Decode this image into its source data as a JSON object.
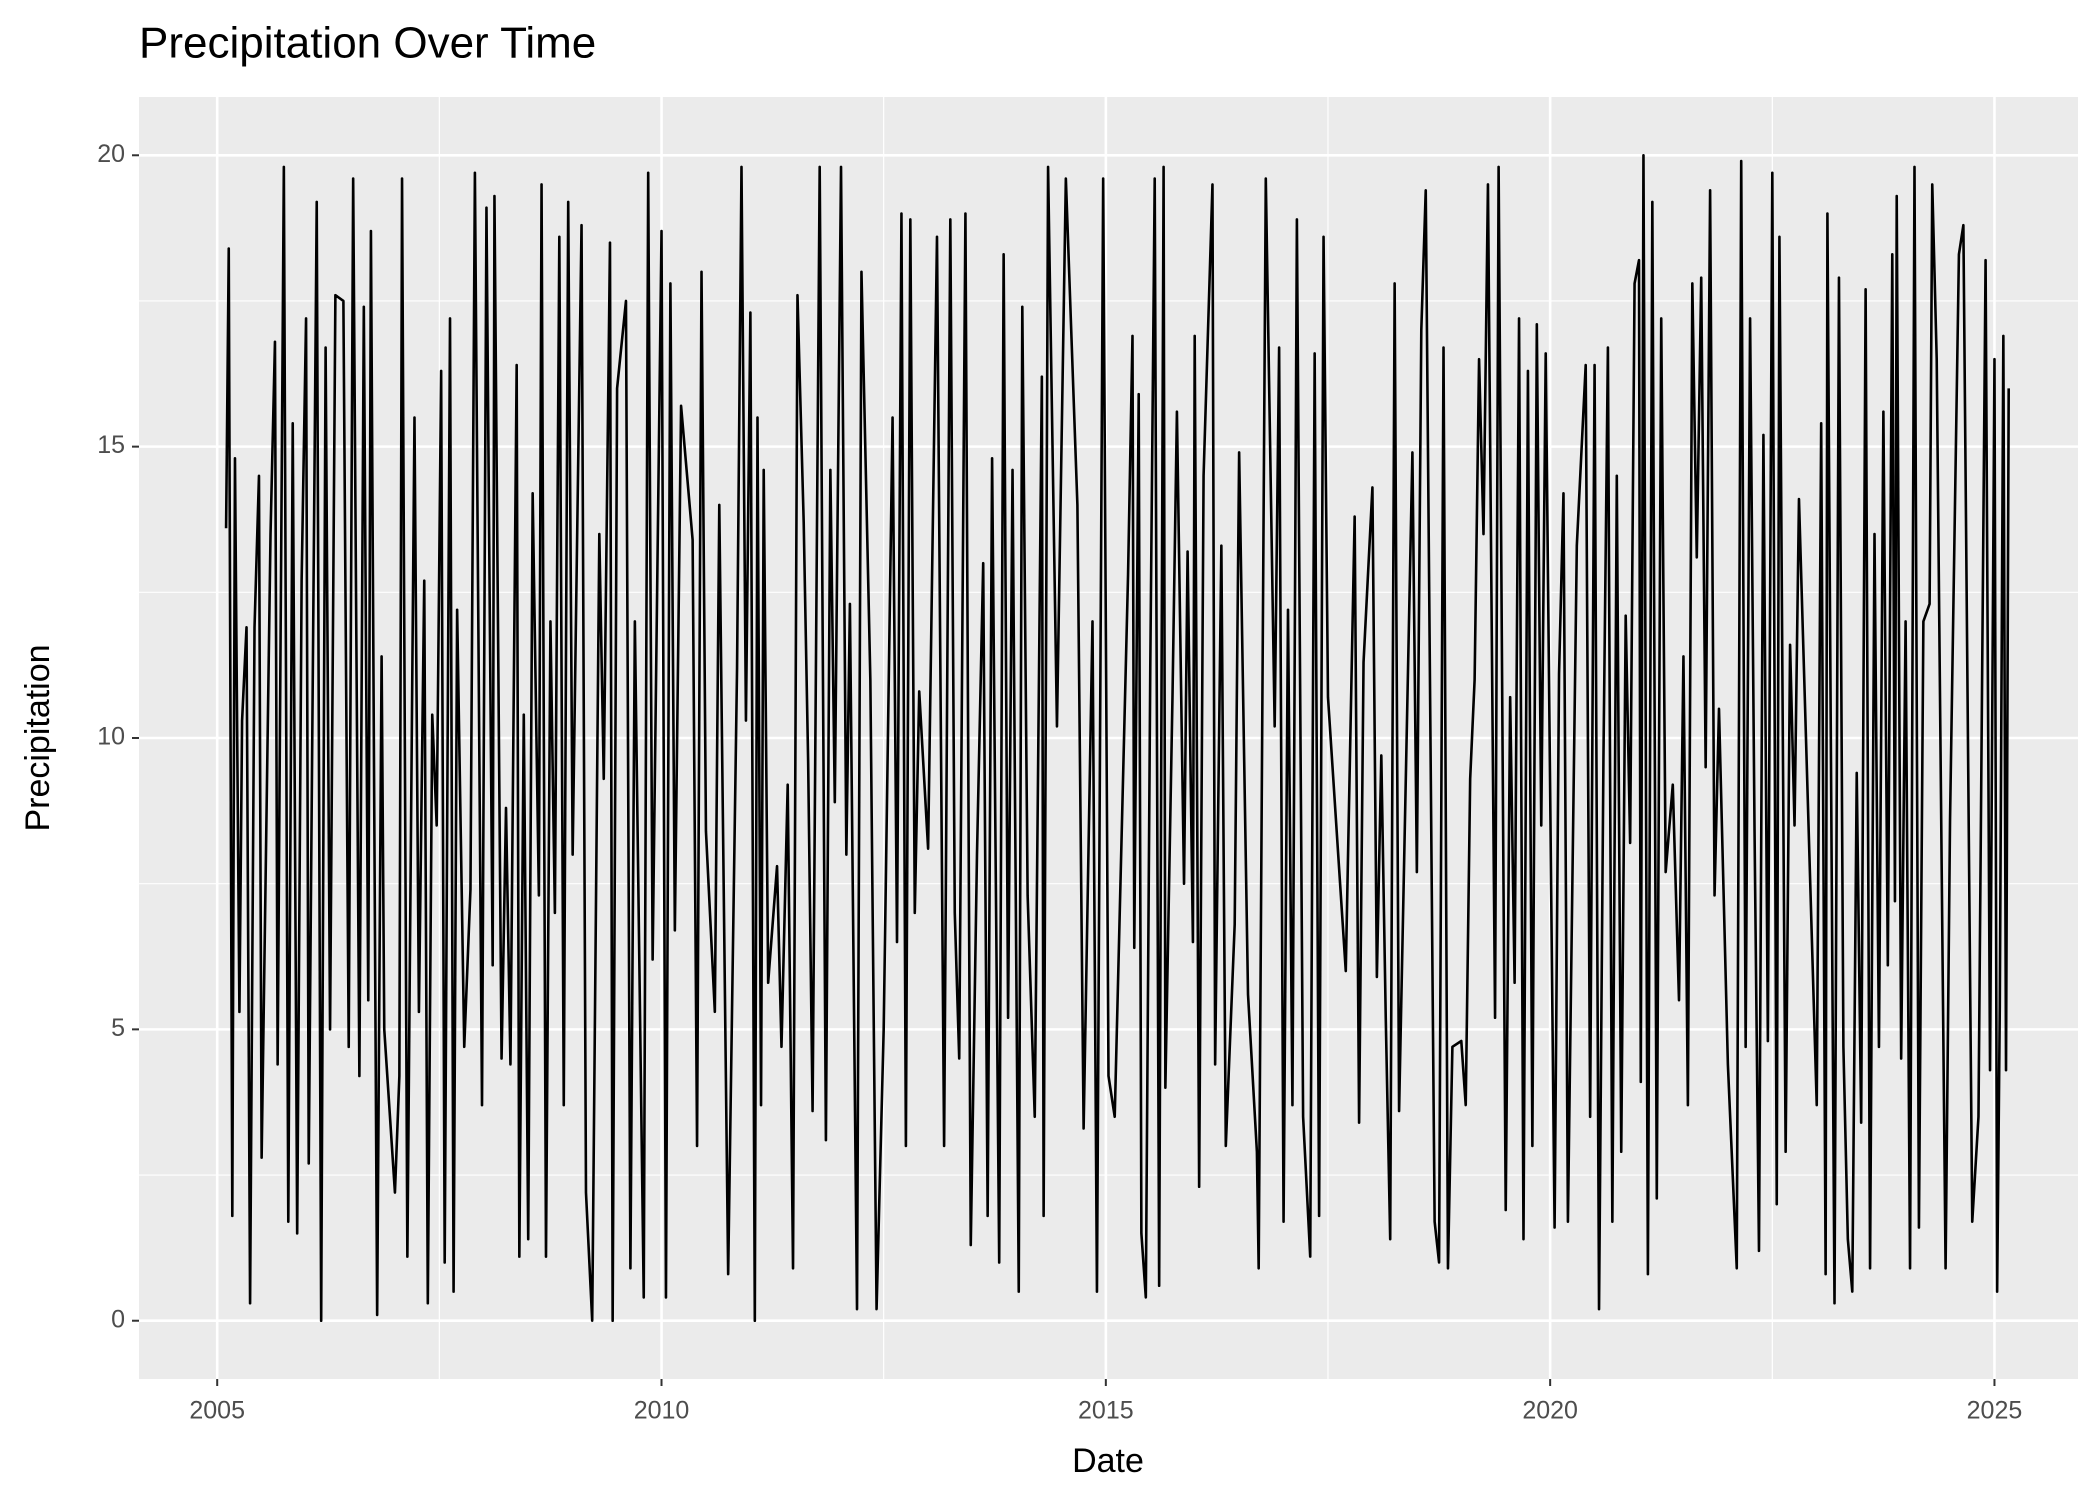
{
  "chart_data": {
    "type": "line",
    "title": "Precipitation Over Time",
    "x_label": "Date",
    "y_label": "Precipitation",
    "xlim": [
      2004.12,
      2025.94
    ],
    "ylim": [
      -1,
      21
    ],
    "xticks": [
      2005,
      2010,
      2015,
      2020,
      2025
    ],
    "yticks": [
      0,
      5,
      10,
      15,
      20
    ],
    "xminor": [
      2007.5,
      2012.5,
      2017.5,
      2022.5
    ],
    "yminor": [
      2.5,
      7.5,
      12.5,
      17.5
    ],
    "grid": true,
    "color": "#000000",
    "x": [
      2005.1,
      2005.13,
      2005.17,
      2005.2,
      2005.25,
      2005.28,
      2005.33,
      2005.37,
      2005.42,
      2005.47,
      2005.5,
      2005.6,
      2005.65,
      2005.68,
      2005.75,
      2005.8,
      2005.85,
      2005.9,
      2005.95,
      2006.0,
      2006.03,
      2006.12,
      2006.17,
      2006.22,
      2006.27,
      2006.33,
      2006.42,
      2006.48,
      2006.53,
      2006.6,
      2006.65,
      2006.7,
      2006.73,
      2006.8,
      2006.85,
      2006.88,
      2007.0,
      2007.05,
      2007.08,
      2007.14,
      2007.22,
      2007.27,
      2007.33,
      2007.37,
      2007.42,
      2007.47,
      2007.52,
      2007.56,
      2007.62,
      2007.66,
      2007.7,
      2007.78,
      2007.85,
      2007.9,
      2007.98,
      2008.03,
      2008.1,
      2008.12,
      2008.2,
      2008.25,
      2008.3,
      2008.37,
      2008.4,
      2008.45,
      2008.5,
      2008.55,
      2008.62,
      2008.65,
      2008.7,
      2008.75,
      2008.8,
      2008.85,
      2008.9,
      2008.95,
      2009.0,
      2009.1,
      2009.15,
      2009.22,
      2009.3,
      2009.35,
      2009.42,
      2009.45,
      2009.5,
      2009.6,
      2009.65,
      2009.7,
      2009.8,
      2009.85,
      2009.9,
      2010.0,
      2010.05,
      2010.1,
      2010.15,
      2010.22,
      2010.35,
      2010.4,
      2010.45,
      2010.5,
      2010.6,
      2010.65,
      2010.75,
      2010.85,
      2010.9,
      2010.95,
      2011.0,
      2011.05,
      2011.08,
      2011.12,
      2011.15,
      2011.2,
      2011.3,
      2011.35,
      2011.42,
      2011.48,
      2011.53,
      2011.6,
      2011.65,
      2011.7,
      2011.78,
      2011.85,
      2011.9,
      2011.95,
      2012.02,
      2012.08,
      2012.12,
      2012.2,
      2012.25,
      2012.35,
      2012.42,
      2012.5,
      2012.6,
      2012.65,
      2012.7,
      2012.75,
      2012.8,
      2012.85,
      2012.9,
      2013.0,
      2013.1,
      2013.18,
      2013.25,
      2013.3,
      2013.35,
      2013.42,
      2013.48,
      2013.55,
      2013.62,
      2013.67,
      2013.72,
      2013.8,
      2013.85,
      2013.9,
      2013.95,
      2014.02,
      2014.06,
      2014.12,
      2014.2,
      2014.28,
      2014.3,
      2014.35,
      2014.45,
      2014.55,
      2014.68,
      2014.75,
      2014.85,
      2014.9,
      2014.97,
      2015.03,
      2015.1,
      2015.25,
      2015.3,
      2015.32,
      2015.37,
      2015.4,
      2015.45,
      2015.5,
      2015.55,
      2015.6,
      2015.65,
      2015.67,
      2015.75,
      2015.8,
      2015.88,
      2015.92,
      2015.98,
      2016.0,
      2016.05,
      2016.1,
      2016.2,
      2016.23,
      2016.3,
      2016.35,
      2016.45,
      2016.5,
      2016.6,
      2016.7,
      2016.72,
      2016.8,
      2016.9,
      2016.95,
      2017.0,
      2017.05,
      2017.1,
      2017.15,
      2017.22,
      2017.3,
      2017.35,
      2017.4,
      2017.45,
      2017.5,
      2017.7,
      2017.8,
      2017.85,
      2017.9,
      2018.0,
      2018.05,
      2018.1,
      2018.15,
      2018.2,
      2018.25,
      2018.3,
      2018.45,
      2018.5,
      2018.55,
      2018.6,
      2018.7,
      2018.75,
      2018.8,
      2018.85,
      2018.9,
      2019.0,
      2019.05,
      2019.1,
      2019.15,
      2019.2,
      2019.25,
      2019.3,
      2019.38,
      2019.42,
      2019.5,
      2019.55,
      2019.6,
      2019.65,
      2019.7,
      2019.75,
      2019.8,
      2019.85,
      2019.9,
      2019.95,
      2020.05,
      2020.1,
      2020.15,
      2020.2,
      2020.3,
      2020.4,
      2020.45,
      2020.5,
      2020.55,
      2020.6,
      2020.65,
      2020.7,
      2020.75,
      2020.8,
      2020.85,
      2020.9,
      2020.95,
      2021.0,
      2021.02,
      2021.05,
      2021.1,
      2021.15,
      2021.2,
      2021.25,
      2021.3,
      2021.38,
      2021.45,
      2021.5,
      2021.55,
      2021.6,
      2021.65,
      2021.7,
      2021.75,
      2021.8,
      2021.85,
      2021.9,
      2022.0,
      2022.1,
      2022.15,
      2022.2,
      2022.25,
      2022.3,
      2022.35,
      2022.4,
      2022.45,
      2022.5,
      2022.55,
      2022.58,
      2022.65,
      2022.7,
      2022.75,
      2022.8,
      2023.0,
      2023.05,
      2023.1,
      2023.12,
      2023.2,
      2023.25,
      2023.3,
      2023.35,
      2023.4,
      2023.45,
      2023.5,
      2023.55,
      2023.6,
      2023.65,
      2023.7,
      2023.75,
      2023.8,
      2023.85,
      2023.88,
      2023.9,
      2023.95,
      2024.0,
      2024.05,
      2024.1,
      2024.15,
      2024.2,
      2024.27,
      2024.3,
      2024.35,
      2024.45,
      2024.5,
      2024.6,
      2024.65,
      2024.75,
      2024.82,
      2024.9,
      2024.95,
      2025.0,
      2025.03,
      2025.06,
      2025.1,
      2025.13,
      2025.16
    ],
    "values": [
      13.6,
      18.4,
      1.8,
      14.8,
      5.3,
      10.3,
      11.9,
      0.3,
      11.9,
      14.5,
      2.8,
      13.5,
      16.8,
      4.4,
      19.8,
      1.7,
      15.4,
      1.5,
      12.7,
      17.2,
      2.7,
      19.2,
      0.0,
      16.7,
      5.0,
      17.6,
      17.5,
      4.7,
      19.6,
      4.2,
      17.4,
      5.5,
      18.7,
      0.1,
      11.4,
      5.0,
      2.2,
      4.2,
      19.6,
      1.1,
      15.5,
      5.3,
      12.7,
      0.3,
      10.4,
      8.5,
      16.3,
      1.0,
      17.2,
      0.5,
      12.2,
      4.7,
      7.4,
      19.7,
      3.7,
      19.1,
      6.1,
      19.3,
      4.5,
      8.8,
      4.4,
      16.4,
      1.1,
      10.4,
      1.4,
      14.2,
      7.3,
      19.5,
      1.1,
      12.0,
      7.0,
      18.6,
      3.7,
      19.2,
      8.0,
      18.8,
      2.2,
      0.0,
      13.5,
      9.3,
      18.5,
      0.0,
      16.0,
      17.5,
      0.9,
      12.0,
      0.4,
      19.7,
      6.2,
      18.7,
      0.4,
      17.8,
      6.7,
      15.7,
      13.4,
      3.0,
      18.0,
      8.4,
      5.3,
      14.0,
      0.8,
      11.2,
      19.8,
      10.3,
      17.3,
      0.0,
      15.5,
      3.7,
      14.6,
      5.8,
      7.8,
      4.7,
      9.2,
      0.9,
      17.6,
      13.7,
      9.6,
      3.6,
      19.8,
      3.1,
      14.6,
      8.9,
      19.8,
      8.0,
      12.3,
      0.2,
      18.0,
      11.0,
      0.2,
      5.0,
      15.5,
      6.5,
      19.0,
      3.0,
      18.9,
      7.0,
      10.8,
      8.1,
      18.6,
      3.0,
      18.9,
      7.0,
      4.5,
      19.0,
      1.3,
      8.0,
      13.0,
      1.8,
      14.8,
      1.0,
      18.3,
      5.2,
      14.6,
      0.5,
      17.4,
      7.3,
      3.5,
      16.2,
      1.8,
      19.8,
      10.2,
      19.6,
      14.0,
      3.3,
      12.0,
      0.5,
      19.6,
      4.2,
      3.5,
      12.8,
      16.9,
      6.4,
      15.9,
      1.5,
      0.4,
      11.2,
      19.6,
      0.6,
      19.8,
      4.0,
      10.7,
      15.6,
      7.5,
      13.2,
      6.5,
      16.9,
      2.3,
      14.5,
      19.5,
      4.4,
      13.3,
      3.0,
      6.8,
      14.9,
      5.6,
      2.9,
      0.9,
      19.6,
      10.2,
      16.7,
      1.7,
      12.2,
      3.7,
      18.9,
      3.5,
      1.1,
      16.6,
      1.8,
      18.6,
      10.7,
      6.0,
      13.8,
      3.4,
      11.3,
      14.3,
      5.9,
      9.7,
      5.2,
      1.4,
      17.8,
      3.6,
      14.9,
      7.7,
      17.0,
      19.4,
      1.7,
      1.0,
      16.7,
      0.9,
      4.7,
      4.8,
      3.7,
      9.3,
      11.0,
      16.5,
      13.5,
      19.5,
      5.2,
      19.8,
      1.9,
      10.7,
      5.8,
      17.2,
      1.4,
      16.3,
      3.0,
      17.1,
      8.5,
      16.6,
      1.6,
      11.1,
      14.2,
      1.7,
      13.3,
      16.4,
      3.5,
      16.4,
      0.2,
      9.7,
      16.7,
      1.7,
      14.5,
      2.9,
      12.1,
      8.2,
      17.8,
      18.2,
      4.1,
      20.0,
      0.8,
      19.2,
      2.1,
      17.2,
      7.7,
      9.2,
      5.5,
      11.4,
      3.7,
      17.8,
      13.1,
      17.9,
      9.5,
      19.4,
      7.3,
      10.5,
      4.4,
      0.9,
      19.9,
      4.7,
      17.2,
      8.4,
      1.2,
      15.2,
      4.8,
      19.7,
      2.0,
      18.6,
      2.9,
      11.6,
      8.5,
      14.1,
      3.7,
      15.4,
      0.8,
      19.0,
      0.3,
      17.9,
      4.7,
      1.4,
      0.5,
      9.4,
      3.4,
      17.7,
      0.9,
      13.5,
      4.7,
      15.6,
      6.1,
      18.3,
      7.2,
      19.3,
      4.5,
      12.0,
      0.9,
      19.8,
      1.6,
      12.0,
      12.3,
      19.5,
      16.5,
      0.9,
      8.6,
      18.3,
      18.8,
      1.7,
      3.5,
      18.2,
      4.3,
      16.5,
      0.5,
      5.4,
      16.9,
      4.3,
      16.0
    ]
  }
}
